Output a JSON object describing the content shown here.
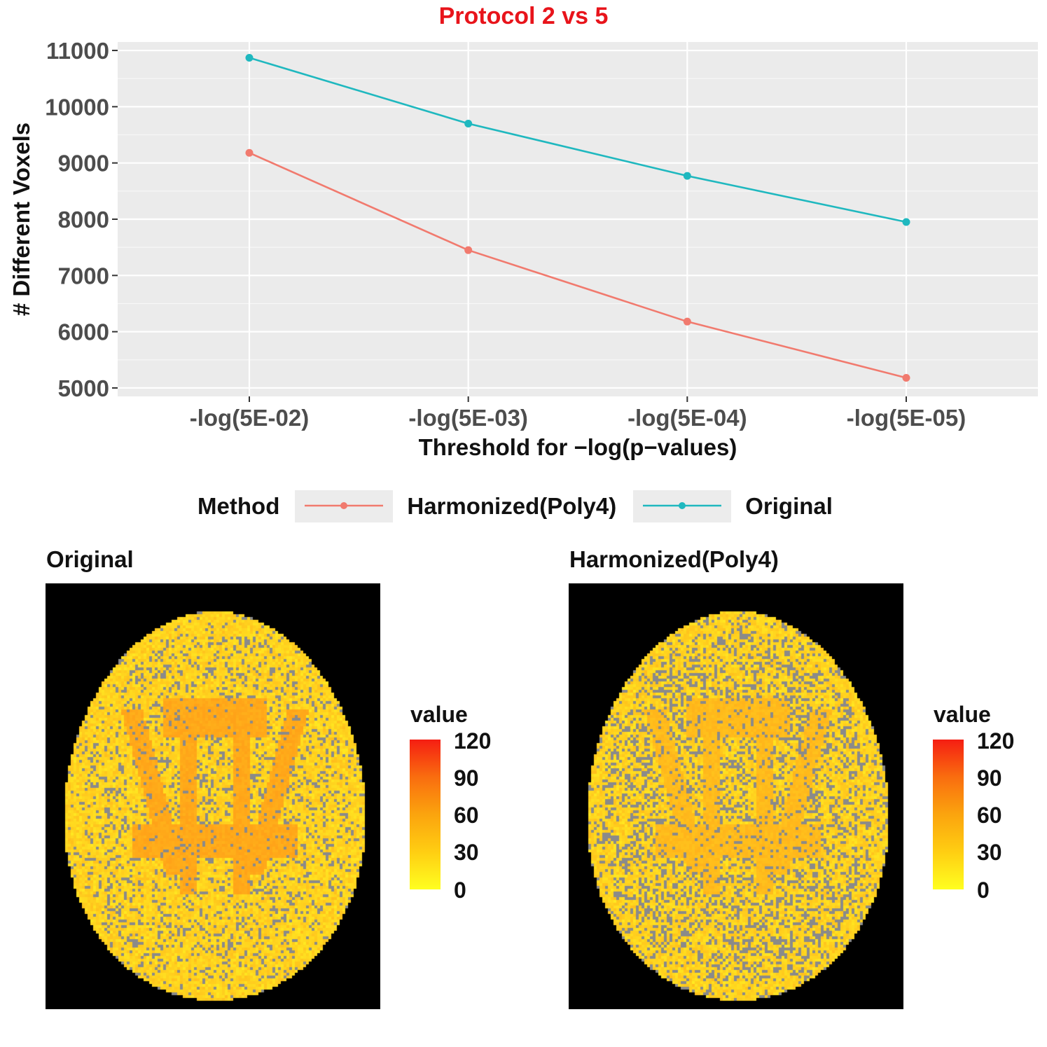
{
  "chart_data": {
    "type": "line",
    "title": "Protocol 2 vs 5",
    "xlabel": "Threshold for −log(p−values)",
    "ylabel": "# Different Voxels",
    "categories": [
      "-log(5E-02)",
      "-log(5E-03)",
      "-log(5E-04)",
      "-log(5E-05)"
    ],
    "yticks": [
      5000,
      6000,
      7000,
      8000,
      9000,
      10000,
      11000
    ],
    "ylim": [
      4850,
      11150
    ],
    "series": [
      {
        "name": "Harmonized(Poly4)",
        "color": "#f17a6e",
        "values": [
          9180,
          7450,
          6180,
          5180
        ]
      },
      {
        "name": "Original",
        "color": "#1fb8bf",
        "values": [
          10870,
          9700,
          8770,
          7950
        ]
      }
    ],
    "legend": {
      "title": "Method",
      "position": "bottom"
    },
    "grid": true
  },
  "panels": [
    {
      "title": "Original",
      "colorbar_title": "value",
      "colorbar_ticks": [
        "120",
        "90",
        "60",
        "30",
        "0"
      ]
    },
    {
      "title": "Harmonized(Poly4)",
      "colorbar_title": "value",
      "colorbar_ticks": [
        "120",
        "90",
        "60",
        "30",
        "0"
      ]
    }
  ],
  "colors": {
    "title": "#e8141b",
    "panel_bg": "#ebebeb",
    "gap_voxel": "#8a8a8a"
  }
}
